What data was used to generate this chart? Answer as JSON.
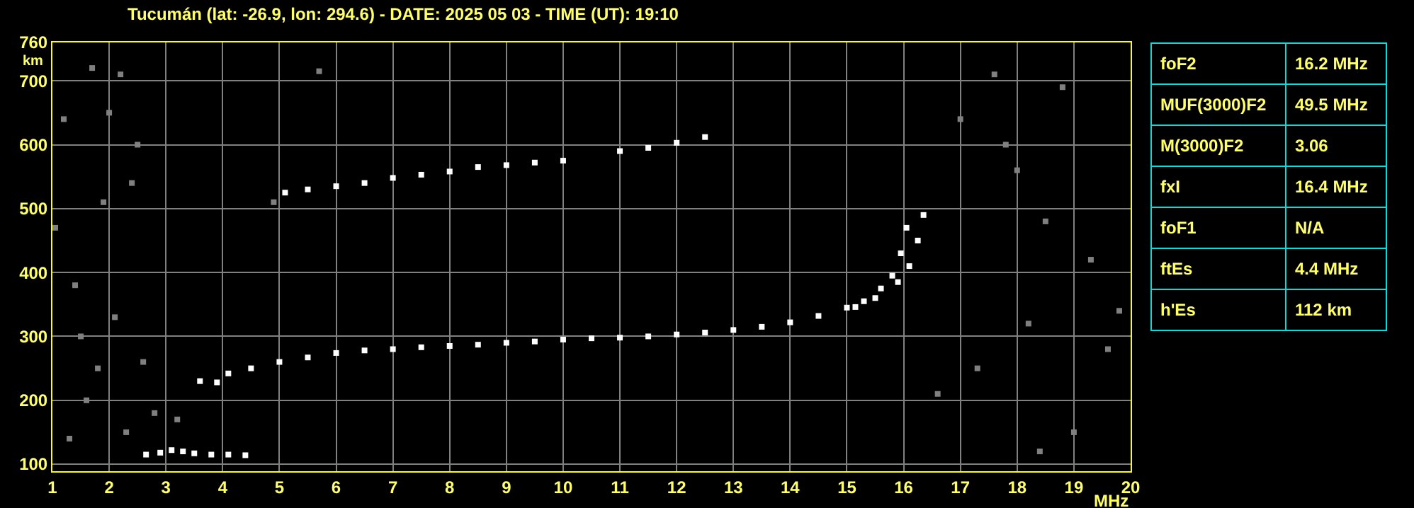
{
  "chart_data": [
    {
      "type": "scatter",
      "title": "Tucumán (lat: -26.9, lon: 294.6) - DATE: 2025 05 03 - TIME (UT): 19:10",
      "xlabel": "MHz",
      "ylabel": "km",
      "xlim": [
        1,
        20
      ],
      "xticks": [
        1,
        2,
        3,
        4,
        5,
        6,
        7,
        8,
        9,
        10,
        11,
        12,
        13,
        14,
        15,
        16,
        17,
        18,
        19,
        20
      ],
      "ylim": [
        89,
        760
      ],
      "yticks": [
        100,
        200,
        300,
        400,
        500,
        600,
        700,
        760
      ],
      "grid": true,
      "marker": "square",
      "series": [
        {
          "color": "#ffffff",
          "x": [
            2.65,
            2.9,
            3.1,
            3.3,
            3.5,
            3.8,
            4.1,
            4.4
          ],
          "values": [
            115,
            118,
            122,
            120,
            117,
            115,
            115,
            114
          ]
        },
        {
          "color": "#ffffff",
          "x": [
            3.6,
            3.9,
            4.1,
            4.5,
            5,
            5.5,
            6,
            6.5,
            7,
            7.5,
            8,
            8.5,
            9,
            9.5,
            10,
            10.5,
            11,
            11.5,
            12,
            12.5,
            13,
            13.5,
            14,
            14.5,
            15,
            15.3,
            15.6,
            15.8,
            15.95,
            16.05
          ],
          "values": [
            230,
            228,
            242,
            250,
            260,
            267,
            274,
            278,
            280,
            283,
            285,
            287,
            290,
            292,
            295,
            297,
            298,
            300,
            303,
            306,
            310,
            315,
            322,
            332,
            345,
            355,
            375,
            395,
            430,
            470
          ]
        },
        {
          "color": "#ffffff",
          "x": [
            15.15,
            15.5,
            15.9,
            16.1,
            16.25,
            16.35
          ],
          "values": [
            346,
            360,
            385,
            410,
            450,
            490
          ]
        },
        {
          "color": "#ffffff",
          "x": [
            5.1,
            5.5,
            6,
            6.5,
            7,
            7.5,
            8,
            8.5,
            9,
            9.5,
            10,
            11,
            11.5,
            12,
            12.5
          ],
          "values": [
            525,
            530,
            535,
            540,
            548,
            553,
            558,
            565,
            568,
            572,
            575,
            590,
            595,
            603,
            612
          ]
        },
        {
          "color": "#808080",
          "x": [
            1.05,
            1.2,
            1.4,
            1.5,
            1.6,
            1.7,
            1.8,
            2.0,
            2.1,
            2.2,
            2.3,
            2.5,
            2.6,
            2.8,
            1.3,
            1.9,
            2.4,
            5.7,
            4.9,
            3.2,
            17.0,
            17.3,
            17.6,
            18.0,
            18.2,
            18.5,
            18.8,
            19.0,
            19.3,
            19.6,
            16.6,
            17.8,
            19.8,
            18.4
          ],
          "values": [
            470,
            640,
            380,
            300,
            200,
            720,
            250,
            650,
            330,
            710,
            150,
            600,
            260,
            180,
            140,
            510,
            540,
            715,
            510,
            170,
            640,
            250,
            710,
            560,
            320,
            480,
            690,
            150,
            420,
            280,
            210,
            600,
            340,
            120
          ]
        }
      ]
    },
    {
      "type": "other",
      "categories": [
        "foF2",
        "MUF(3000)F2",
        "M(3000)F2",
        "fxI",
        "foF1",
        "ftEs",
        "h'Es"
      ],
      "value_labels": [
        "16.2 MHz",
        "49.5 MHz",
        "3.06",
        "16.4 MHz",
        "N/A",
        "4.4 MHz",
        "112 km"
      ]
    }
  ]
}
